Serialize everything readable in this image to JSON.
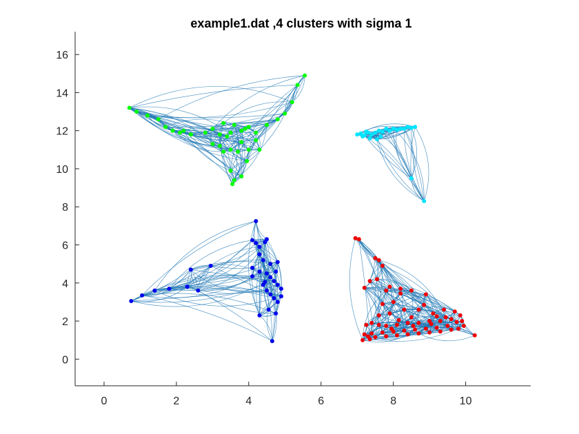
{
  "chart_data": {
    "type": "scatter",
    "title": "example1.dat ,4 clusters with sigma 1",
    "xlabel": "",
    "ylabel": "",
    "xlim": [
      -0.8,
      11.8
    ],
    "ylim": [
      -1.4,
      17.2
    ],
    "xticks": [
      0,
      2,
      4,
      6,
      8,
      10
    ],
    "yticks": [
      0,
      2,
      4,
      6,
      8,
      10,
      12,
      14,
      16
    ],
    "xtick_labels": [
      "0",
      "2",
      "4",
      "6",
      "8",
      "10"
    ],
    "ytick_labels": [
      "0",
      "2",
      "4",
      "6",
      "8",
      "10",
      "12",
      "14",
      "16"
    ],
    "grid": false,
    "box": false,
    "edge_color": "#1f77b4",
    "series": [
      {
        "color": "#00ff00",
        "points": [
          [
            0.7,
            13.2
          ],
          [
            0.9,
            13.0
          ],
          [
            1.2,
            12.8
          ],
          [
            1.5,
            12.6
          ],
          [
            1.7,
            12.2
          ],
          [
            1.9,
            12.0
          ],
          [
            2.1,
            11.9
          ],
          [
            2.2,
            12.0
          ],
          [
            2.4,
            11.8
          ],
          [
            2.8,
            11.9
          ],
          [
            3.0,
            12.1
          ],
          [
            3.2,
            11.8
          ],
          [
            3.4,
            11.7
          ],
          [
            3.5,
            11.9
          ],
          [
            3.6,
            12.3
          ],
          [
            3.8,
            12.0
          ],
          [
            3.9,
            12.1
          ],
          [
            4.0,
            12.2
          ],
          [
            4.2,
            11.9
          ],
          [
            4.5,
            12.3
          ],
          [
            4.8,
            12.6
          ],
          [
            5.0,
            12.9
          ],
          [
            5.2,
            13.5
          ],
          [
            5.35,
            14.4
          ],
          [
            5.55,
            14.9
          ],
          [
            3.0,
            11.3
          ],
          [
            3.2,
            11.2
          ],
          [
            3.3,
            10.9
          ],
          [
            3.5,
            11.0
          ],
          [
            3.7,
            10.9
          ],
          [
            3.8,
            11.4
          ],
          [
            4.0,
            11.0
          ],
          [
            4.2,
            11.5
          ],
          [
            4.3,
            11.0
          ],
          [
            3.5,
            9.9
          ],
          [
            3.8,
            9.6
          ],
          [
            3.6,
            9.4
          ],
          [
            3.55,
            9.2
          ],
          [
            3.95,
            10.4
          ],
          [
            3.3,
            12.4
          ]
        ]
      },
      {
        "color": "#00e5ff",
        "points": [
          [
            7.0,
            11.8
          ],
          [
            7.1,
            11.85
          ],
          [
            7.2,
            11.75
          ],
          [
            7.3,
            11.9
          ],
          [
            7.4,
            11.8
          ],
          [
            7.5,
            11.9
          ],
          [
            7.6,
            12.0
          ],
          [
            7.7,
            11.95
          ],
          [
            7.8,
            12.1
          ],
          [
            7.9,
            12.0
          ],
          [
            8.0,
            12.1
          ],
          [
            8.1,
            12.05
          ],
          [
            8.2,
            12.1
          ],
          [
            8.3,
            12.1
          ],
          [
            8.4,
            12.2
          ],
          [
            8.5,
            12.15
          ],
          [
            8.6,
            12.2
          ],
          [
            7.15,
            11.7
          ],
          [
            7.35,
            11.6
          ],
          [
            7.55,
            11.55
          ],
          [
            7.25,
            11.95
          ],
          [
            7.65,
            11.7
          ],
          [
            8.5,
            9.5
          ],
          [
            8.85,
            8.3
          ]
        ]
      },
      {
        "color": "#0000ee",
        "points": [
          [
            0.75,
            3.05
          ],
          [
            1.05,
            3.35
          ],
          [
            1.4,
            3.6
          ],
          [
            1.8,
            3.7
          ],
          [
            2.3,
            3.8
          ],
          [
            2.6,
            3.6
          ],
          [
            2.4,
            4.7
          ],
          [
            2.95,
            4.9
          ],
          [
            4.2,
            7.25
          ],
          [
            4.1,
            6.25
          ],
          [
            4.2,
            6.1
          ],
          [
            4.3,
            5.9
          ],
          [
            4.5,
            6.3
          ],
          [
            4.45,
            6.15
          ],
          [
            4.3,
            5.5
          ],
          [
            4.4,
            5.2
          ],
          [
            4.6,
            5.0
          ],
          [
            4.8,
            5.1
          ],
          [
            4.1,
            4.8
          ],
          [
            4.3,
            4.6
          ],
          [
            4.5,
            4.5
          ],
          [
            4.6,
            4.3
          ],
          [
            4.7,
            4.1
          ],
          [
            4.8,
            3.9
          ],
          [
            4.9,
            3.7
          ],
          [
            4.5,
            3.6
          ],
          [
            4.6,
            3.4
          ],
          [
            4.7,
            3.2
          ],
          [
            4.8,
            3.0
          ],
          [
            4.9,
            3.3
          ],
          [
            4.1,
            4.35
          ],
          [
            4.55,
            2.6
          ],
          [
            4.3,
            2.3
          ],
          [
            4.75,
            2.4
          ],
          [
            4.65,
            0.95
          ],
          [
            4.4,
            3.9
          ],
          [
            4.75,
            4.6
          ],
          [
            4.45,
            4.05
          ]
        ]
      },
      {
        "color": "#ee0000",
        "points": [
          [
            6.95,
            6.35
          ],
          [
            7.05,
            6.3
          ],
          [
            7.5,
            5.3
          ],
          [
            7.6,
            5.2
          ],
          [
            7.7,
            4.9
          ],
          [
            7.35,
            4.1
          ],
          [
            7.55,
            4.2
          ],
          [
            7.2,
            3.75
          ],
          [
            7.9,
            3.8
          ],
          [
            8.2,
            3.7
          ],
          [
            8.5,
            3.6
          ],
          [
            8.9,
            3.4
          ],
          [
            8.2,
            3.45
          ],
          [
            7.8,
            3.6
          ],
          [
            8.0,
            3.0
          ],
          [
            7.7,
            2.9
          ],
          [
            8.3,
            2.6
          ],
          [
            8.7,
            2.6
          ],
          [
            9.1,
            2.4
          ],
          [
            9.4,
            2.6
          ],
          [
            9.7,
            2.5
          ],
          [
            9.85,
            2.3
          ],
          [
            9.6,
            2.1
          ],
          [
            9.3,
            2.0
          ],
          [
            9.0,
            2.0
          ],
          [
            8.7,
            1.9
          ],
          [
            8.4,
            1.9
          ],
          [
            8.1,
            1.8
          ],
          [
            7.8,
            1.75
          ],
          [
            7.6,
            1.8
          ],
          [
            7.4,
            1.9
          ],
          [
            7.25,
            1.8
          ],
          [
            7.6,
            2.3
          ],
          [
            7.9,
            2.4
          ],
          [
            8.5,
            2.2
          ],
          [
            9.2,
            2.25
          ],
          [
            9.9,
            2.0
          ],
          [
            9.5,
            1.75
          ],
          [
            9.2,
            1.65
          ],
          [
            8.9,
            1.6
          ],
          [
            8.6,
            1.55
          ],
          [
            8.3,
            1.5
          ],
          [
            8.0,
            1.45
          ],
          [
            7.7,
            1.4
          ],
          [
            7.4,
            1.35
          ],
          [
            7.2,
            1.3
          ],
          [
            7.3,
            1.2
          ],
          [
            7.5,
            1.15
          ],
          [
            7.8,
            1.2
          ],
          [
            8.1,
            1.25
          ],
          [
            8.4,
            1.3
          ],
          [
            8.7,
            1.35
          ],
          [
            9.0,
            1.4
          ],
          [
            9.3,
            1.45
          ],
          [
            9.6,
            1.55
          ],
          [
            9.8,
            1.6
          ],
          [
            9.95,
            1.75
          ],
          [
            7.15,
            1.0
          ],
          [
            7.35,
            1.05
          ],
          [
            10.25,
            1.25
          ],
          [
            8.85,
            2.85
          ],
          [
            9.45,
            2.2
          ],
          [
            8.15,
            2.05
          ],
          [
            7.95,
            1.6
          ],
          [
            8.55,
            1.75
          ],
          [
            9.05,
            1.85
          ],
          [
            9.75,
            1.95
          ]
        ]
      }
    ]
  }
}
